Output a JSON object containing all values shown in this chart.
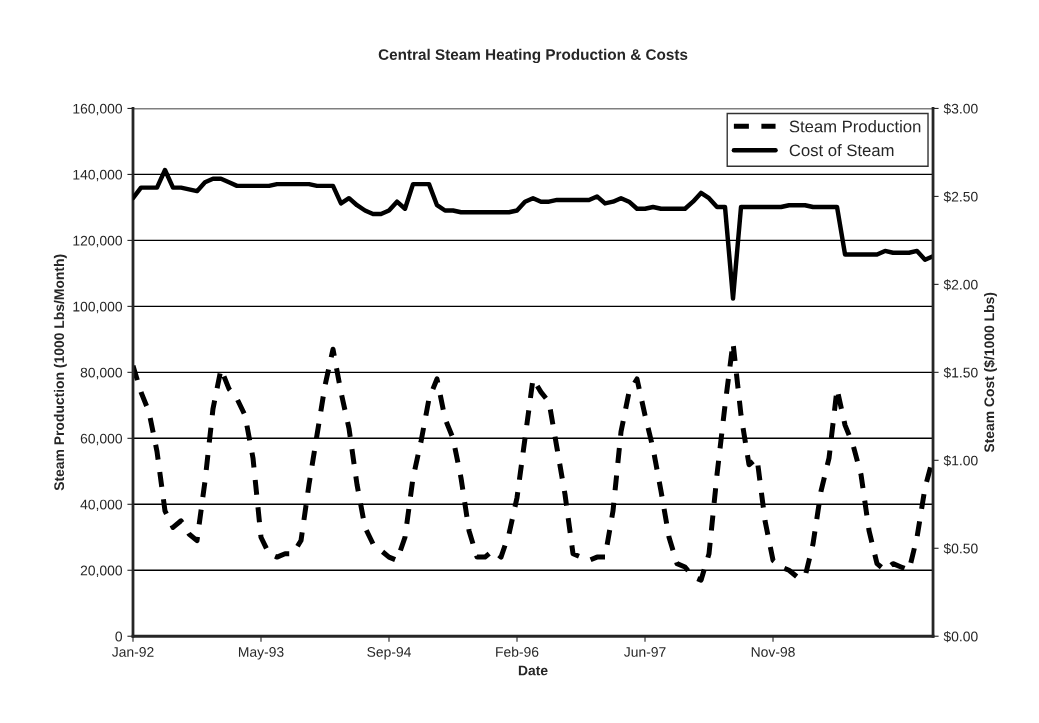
{
  "chart_data": {
    "type": "line",
    "title": "Central Steam Heating Production & Costs",
    "xlabel": "Date",
    "ylabel": "Steam Production (1000 Lbs/Month)",
    "y2label": "Steam Cost ($/1000 Lbs)",
    "categories": [
      "Jan-92",
      null,
      null,
      null,
      null,
      null,
      null,
      null,
      null,
      null,
      null,
      null,
      null,
      null,
      null,
      null,
      "May-93",
      null,
      null,
      null,
      null,
      null,
      null,
      null,
      null,
      null,
      null,
      null,
      null,
      null,
      null,
      null,
      "Sep-94",
      null,
      null,
      null,
      null,
      null,
      null,
      null,
      null,
      null,
      null,
      null,
      null,
      null,
      null,
      null,
      "Feb-96",
      null,
      null,
      null,
      null,
      null,
      null,
      null,
      null,
      null,
      null,
      null,
      null,
      null,
      null,
      null,
      "Jun-97",
      null,
      null,
      null,
      null,
      null,
      null,
      null,
      null,
      null,
      null,
      null,
      null,
      null,
      null,
      null,
      "Nov-98",
      null,
      null,
      null,
      null,
      null,
      null,
      null,
      null,
      null,
      null,
      null,
      null,
      null,
      null,
      null,
      null,
      null,
      null,
      null,
      null
    ],
    "series": [
      {
        "name": "Steam Production",
        "color": "#000000",
        "line_style": "dashed",
        "values": [
          82000,
          74000,
          68000,
          56000,
          38000,
          33000,
          35000,
          31000,
          29000,
          47000,
          69000,
          81000,
          75000,
          72000,
          67000,
          54000,
          30000,
          25000,
          24000,
          25000,
          25000,
          29000,
          46000,
          61000,
          76000,
          87000,
          74000,
          63000,
          46000,
          33000,
          28000,
          26000,
          24000,
          23000,
          30000,
          48000,
          59000,
          72000,
          78000,
          66000,
          60000,
          48000,
          32000,
          24000,
          24000,
          26000,
          24000,
          31000,
          42000,
          60000,
          78000,
          74000,
          71000,
          57000,
          43000,
          25000,
          24000,
          23000,
          24000,
          24000,
          38000,
          62000,
          74000,
          78000,
          67000,
          57000,
          44000,
          30000,
          22000,
          21000,
          18000,
          17000,
          25000,
          49000,
          70000,
          89000,
          67000,
          52000,
          54000,
          35000,
          23000,
          21000,
          20000,
          18000,
          18000,
          28000,
          44000,
          54000,
          75000,
          64000,
          58000,
          49000,
          32000,
          22000,
          20000,
          22000,
          21000,
          20000,
          30000,
          45000,
          54000
        ]
      },
      {
        "name": "Cost of Steam",
        "color": "#000000",
        "line_style": "solid",
        "axis": "y2",
        "values": [
          2.49,
          2.55,
          2.55,
          2.55,
          2.65,
          2.55,
          2.55,
          2.54,
          2.53,
          2.58,
          2.6,
          2.6,
          2.58,
          2.56,
          2.56,
          2.56,
          2.56,
          2.56,
          2.57,
          2.57,
          2.57,
          2.57,
          2.57,
          2.56,
          2.56,
          2.56,
          2.46,
          2.49,
          2.45,
          2.42,
          2.4,
          2.4,
          2.42,
          2.47,
          2.43,
          2.57,
          2.57,
          2.57,
          2.45,
          2.42,
          2.42,
          2.41,
          2.41,
          2.41,
          2.41,
          2.41,
          2.41,
          2.41,
          2.42,
          2.47,
          2.49,
          2.47,
          2.47,
          2.48,
          2.48,
          2.48,
          2.48,
          2.48,
          2.5,
          2.46,
          2.47,
          2.49,
          2.47,
          2.43,
          2.43,
          2.44,
          2.43,
          2.43,
          2.43,
          2.43,
          2.47,
          2.52,
          2.49,
          2.44,
          2.44,
          1.92,
          2.44,
          2.44,
          2.44,
          2.44,
          2.44,
          2.44,
          2.45,
          2.45,
          2.45,
          2.44,
          2.44,
          2.44,
          2.44,
          2.17,
          2.17,
          2.17,
          2.17,
          2.17,
          2.19,
          2.18,
          2.18,
          2.18,
          2.19,
          2.14,
          2.16
        ]
      }
    ],
    "ylim": [
      0,
      160000
    ],
    "yticks": [
      0,
      {
        "value": 20000,
        "label": "20,000"
      },
      {
        "value": 40000,
        "label": "40,000"
      },
      {
        "value": 60000,
        "label": "60,000"
      },
      {
        "value": 80000,
        "label": "80,000"
      },
      {
        "value": 100000,
        "label": "100,000"
      },
      {
        "value": 120000,
        "label": "120,000"
      },
      {
        "value": 140000,
        "label": "140,000"
      },
      {
        "value": 160000,
        "label": "160,000"
      }
    ],
    "y2lim": [
      0,
      3
    ],
    "y2ticks": [
      {
        "value": 0,
        "label": "$0.00"
      },
      {
        "value": 0.5,
        "label": "$0.50"
      },
      {
        "value": 1,
        "label": "$1.00"
      },
      {
        "value": 1.5,
        "label": "$1.50"
      },
      {
        "value": 2,
        "label": "$2.00"
      },
      {
        "value": 2.5,
        "label": "$2.50"
      },
      {
        "value": 3,
        "label": "$3.00"
      }
    ],
    "grid": "y",
    "legend": "top right",
    "marker": "none"
  }
}
